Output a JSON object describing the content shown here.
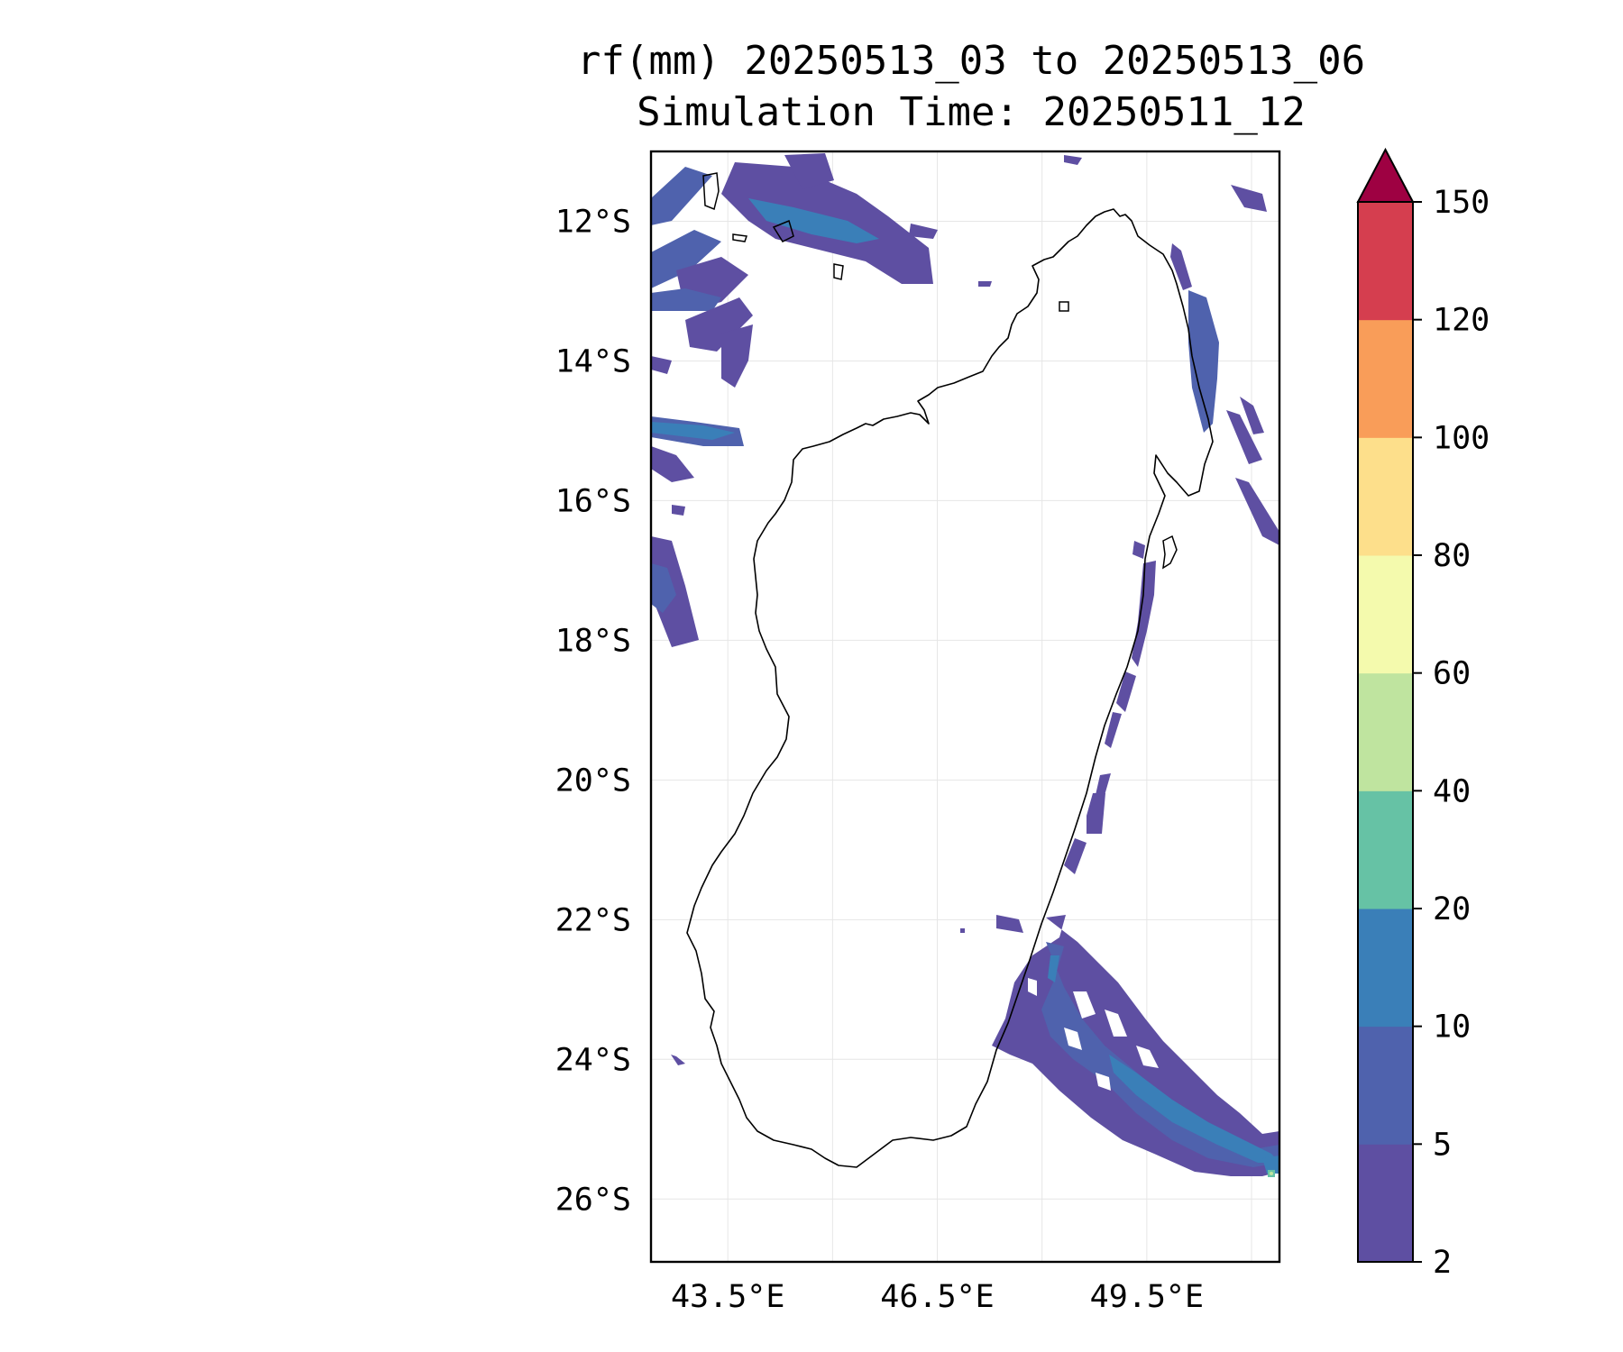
{
  "title": {
    "line1": "rf(mm) 20250513_03 to 20250513_06",
    "line2": "Simulation Time: 20250511_12"
  },
  "map": {
    "region": "Madagascar",
    "lon_range": [
      42.4,
      51.4
    ],
    "lat_range": [
      -26.9,
      -11.0
    ],
    "lat_ticks": [
      {
        "value": -12,
        "label": "12°S"
      },
      {
        "value": -14,
        "label": "14°S"
      },
      {
        "value": -16,
        "label": "16°S"
      },
      {
        "value": -18,
        "label": "18°S"
      },
      {
        "value": -20,
        "label": "20°S"
      },
      {
        "value": -22,
        "label": "22°S"
      },
      {
        "value": -24,
        "label": "24°S"
      },
      {
        "value": -26,
        "label": "26°S"
      }
    ],
    "lon_ticks": [
      {
        "value": 43.5,
        "label": "43.5°E"
      },
      {
        "value": 46.5,
        "label": "46.5°E"
      },
      {
        "value": 49.5,
        "label": "49.5°E"
      }
    ],
    "grid": true
  },
  "colorbar": {
    "levels": [
      "2",
      "5",
      "10",
      "20",
      "40",
      "60",
      "80",
      "100",
      "120",
      "150"
    ],
    "colors": [
      "#5e4fa2",
      "#4f62ad",
      "#3a7fb8",
      "#66c2a5",
      "#bfe49f",
      "#f4faad",
      "#fddf8b",
      "#f99d59",
      "#d53e4f"
    ],
    "extend_color": "#9e0142",
    "extend": "max"
  },
  "colors": {
    "coastline": "#000000",
    "gridline": "#e6e6e6",
    "rain_light": "#5e4fa2",
    "rain_mid": "#4f62ad",
    "rain_heavy": "#3a7fb8"
  }
}
